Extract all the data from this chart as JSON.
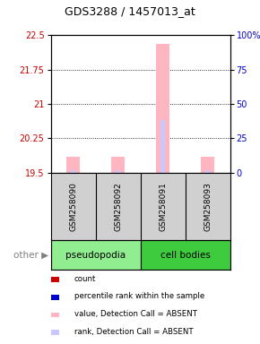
{
  "title": "GDS3288 / 1457013_at",
  "samples": [
    "GSM258090",
    "GSM258092",
    "GSM258091",
    "GSM258093"
  ],
  "ylim_left": [
    19.5,
    22.5
  ],
  "ylim_right": [
    0,
    100
  ],
  "yticks_left": [
    19.5,
    20.25,
    21,
    21.75,
    22.5
  ],
  "yticks_right": [
    0,
    25,
    50,
    75,
    100
  ],
  "ytick_labels_left": [
    "19.5",
    "20.25",
    "21",
    "21.75",
    "22.5"
  ],
  "ytick_labels_right": [
    "0",
    "25",
    "50",
    "75",
    "100%"
  ],
  "bar_values": [
    19.85,
    19.85,
    22.3,
    19.85
  ],
  "rank_values": [
    2,
    2,
    38,
    2
  ],
  "bar_color_absent": "#FFB6C1",
  "rank_color_absent": "#C8C8FF",
  "dot_color_count": "#CC0000",
  "dot_color_rank": "#0000CC",
  "bg_color": "#FFFFFF",
  "plot_bg": "#FFFFFF",
  "left_label_color": "#CC0000",
  "right_label_color": "#0000CC",
  "sample_bg": "#D0D0D0",
  "pseudopodia_color": "#90EE90",
  "cell_bodies_color": "#3ECC3E",
  "legend_items": [
    {
      "color": "#CC0000",
      "label": "count"
    },
    {
      "color": "#0000CC",
      "label": "percentile rank within the sample"
    },
    {
      "color": "#FFB6C1",
      "label": "value, Detection Call = ABSENT"
    },
    {
      "color": "#C8C8FF",
      "label": "rank, Detection Call = ABSENT"
    }
  ],
  "bar_width": 0.3,
  "rank_bar_width": 0.1
}
